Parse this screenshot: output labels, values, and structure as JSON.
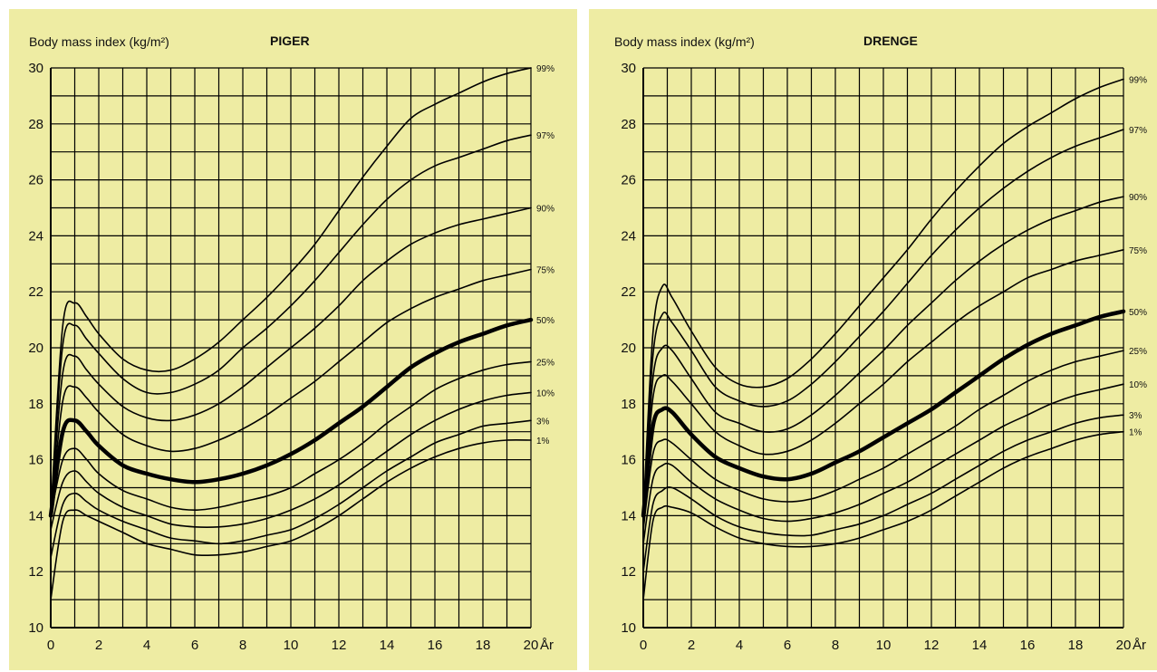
{
  "chart_data": [
    {
      "type": "line",
      "title": "PIGER",
      "ylabel": "Body mass index (kg/m²)",
      "xlabel": "År",
      "xlim": [
        0,
        20
      ],
      "ylim": [
        10,
        30
      ],
      "xticks": [
        "0",
        "2",
        "4",
        "6",
        "8",
        "10",
        "12",
        "14",
        "16",
        "18",
        "20"
      ],
      "yticks": [
        "10",
        "12",
        "14",
        "16",
        "18",
        "20",
        "22",
        "24",
        "26",
        "28",
        "30"
      ],
      "grid": true,
      "x": [
        0,
        0.5,
        1,
        1.5,
        2,
        3,
        4,
        5,
        6,
        7,
        8,
        9,
        10,
        11,
        12,
        13,
        14,
        15,
        16,
        17,
        18,
        19,
        20
      ],
      "series": [
        {
          "name": "99%",
          "bold": false,
          "values": [
            14.0,
            20.8,
            21.6,
            21.1,
            20.5,
            19.6,
            19.2,
            19.2,
            19.6,
            20.2,
            21.0,
            21.8,
            22.7,
            23.7,
            24.9,
            26.1,
            27.2,
            28.2,
            28.7,
            29.1,
            29.5,
            29.8,
            30.0
          ]
        },
        {
          "name": "97%",
          "bold": false,
          "values": [
            14.0,
            20.1,
            20.8,
            20.3,
            19.8,
            18.9,
            18.4,
            18.4,
            18.7,
            19.2,
            20.0,
            20.7,
            21.5,
            22.4,
            23.4,
            24.4,
            25.3,
            26.0,
            26.5,
            26.8,
            27.1,
            27.4,
            27.6
          ]
        },
        {
          "name": "90%",
          "bold": false,
          "values": [
            14.0,
            19.1,
            19.7,
            19.2,
            18.7,
            17.9,
            17.5,
            17.4,
            17.6,
            18.0,
            18.6,
            19.3,
            20.0,
            20.7,
            21.5,
            22.4,
            23.1,
            23.7,
            24.1,
            24.4,
            24.6,
            24.8,
            25.0
          ]
        },
        {
          "name": "75%",
          "bold": false,
          "values": [
            14.0,
            18.1,
            18.6,
            18.2,
            17.7,
            16.9,
            16.5,
            16.3,
            16.4,
            16.7,
            17.1,
            17.6,
            18.2,
            18.8,
            19.5,
            20.2,
            20.9,
            21.4,
            21.8,
            22.1,
            22.4,
            22.6,
            22.8
          ]
        },
        {
          "name": "50%",
          "bold": true,
          "values": [
            14.0,
            17.0,
            17.4,
            17.0,
            16.5,
            15.8,
            15.5,
            15.3,
            15.2,
            15.3,
            15.5,
            15.8,
            16.2,
            16.7,
            17.3,
            17.9,
            18.6,
            19.3,
            19.8,
            20.2,
            20.5,
            20.8,
            21.0
          ]
        },
        {
          "name": "25%",
          "bold": false,
          "values": [
            14.0,
            16.0,
            16.4,
            16.0,
            15.5,
            14.9,
            14.6,
            14.3,
            14.2,
            14.3,
            14.5,
            14.7,
            15.0,
            15.5,
            16.0,
            16.6,
            17.3,
            17.9,
            18.5,
            18.9,
            19.2,
            19.4,
            19.5
          ]
        },
        {
          "name": "10%",
          "bold": false,
          "values": [
            13.5,
            15.2,
            15.6,
            15.2,
            14.8,
            14.3,
            14.0,
            13.7,
            13.6,
            13.6,
            13.7,
            13.9,
            14.2,
            14.6,
            15.1,
            15.7,
            16.3,
            16.9,
            17.4,
            17.8,
            18.1,
            18.3,
            18.4
          ]
        },
        {
          "name": "3%",
          "bold": false,
          "values": [
            12.5,
            14.4,
            14.8,
            14.5,
            14.2,
            13.8,
            13.5,
            13.2,
            13.1,
            13.0,
            13.1,
            13.3,
            13.5,
            13.9,
            14.4,
            15.0,
            15.6,
            16.1,
            16.6,
            16.9,
            17.2,
            17.3,
            17.4
          ]
        },
        {
          "name": "1%",
          "bold": false,
          "values": [
            11.0,
            13.8,
            14.2,
            14.0,
            13.8,
            13.4,
            13.0,
            12.8,
            12.6,
            12.6,
            12.7,
            12.9,
            13.1,
            13.5,
            14.0,
            14.6,
            15.2,
            15.7,
            16.1,
            16.4,
            16.6,
            16.7,
            16.7
          ]
        }
      ]
    },
    {
      "type": "line",
      "title": "DRENGE",
      "ylabel": "Body mass index (kg/m²)",
      "xlabel": "År",
      "xlim": [
        0,
        20
      ],
      "ylim": [
        10,
        30
      ],
      "xticks": [
        "0",
        "2",
        "4",
        "6",
        "8",
        "10",
        "12",
        "14",
        "16",
        "18",
        "20"
      ],
      "yticks": [
        "10",
        "12",
        "14",
        "16",
        "18",
        "20",
        "22",
        "24",
        "26",
        "28",
        "30"
      ],
      "grid": true,
      "x": [
        0,
        0.4,
        0.8,
        1.2,
        2,
        3,
        4,
        5,
        6,
        7,
        8,
        9,
        10,
        11,
        12,
        13,
        14,
        15,
        16,
        17,
        18,
        19,
        20
      ],
      "series": [
        {
          "name": "99%",
          "bold": false,
          "values": [
            14.0,
            20.5,
            22.2,
            21.8,
            20.6,
            19.3,
            18.7,
            18.6,
            18.9,
            19.6,
            20.5,
            21.5,
            22.5,
            23.5,
            24.6,
            25.6,
            26.5,
            27.3,
            27.9,
            28.4,
            28.9,
            29.3,
            29.6
          ]
        },
        {
          "name": "97%",
          "bold": false,
          "values": [
            14.0,
            19.7,
            21.2,
            20.9,
            19.9,
            18.6,
            18.1,
            17.9,
            18.1,
            18.7,
            19.5,
            20.4,
            21.3,
            22.3,
            23.3,
            24.2,
            25.0,
            25.7,
            26.3,
            26.8,
            27.2,
            27.5,
            27.8
          ]
        },
        {
          "name": "90%",
          "bold": false,
          "values": [
            14.0,
            18.9,
            20.0,
            19.9,
            18.9,
            17.7,
            17.3,
            17.0,
            17.1,
            17.6,
            18.3,
            19.1,
            19.9,
            20.8,
            21.6,
            22.4,
            23.1,
            23.7,
            24.2,
            24.6,
            24.9,
            25.2,
            25.4
          ]
        },
        {
          "name": "75%",
          "bold": false,
          "values": [
            14.0,
            18.2,
            19.0,
            18.8,
            18.0,
            17.0,
            16.5,
            16.2,
            16.3,
            16.7,
            17.3,
            18.0,
            18.7,
            19.5,
            20.2,
            20.9,
            21.5,
            22.0,
            22.5,
            22.8,
            23.1,
            23.3,
            23.5
          ]
        },
        {
          "name": "50%",
          "bold": true,
          "values": [
            14.0,
            17.2,
            17.8,
            17.7,
            16.9,
            16.1,
            15.7,
            15.4,
            15.3,
            15.5,
            15.9,
            16.3,
            16.8,
            17.3,
            17.8,
            18.4,
            19.0,
            19.6,
            20.1,
            20.5,
            20.8,
            21.1,
            21.3
          ]
        },
        {
          "name": "25%",
          "bold": false,
          "values": [
            13.5,
            16.2,
            16.7,
            16.6,
            16.0,
            15.3,
            14.9,
            14.6,
            14.5,
            14.6,
            14.9,
            15.3,
            15.7,
            16.2,
            16.7,
            17.2,
            17.8,
            18.3,
            18.8,
            19.2,
            19.5,
            19.7,
            19.9
          ]
        },
        {
          "name": "10%",
          "bold": false,
          "values": [
            13.0,
            15.3,
            15.8,
            15.8,
            15.2,
            14.6,
            14.2,
            13.9,
            13.8,
            13.9,
            14.1,
            14.4,
            14.8,
            15.2,
            15.7,
            16.2,
            16.7,
            17.2,
            17.6,
            18.0,
            18.3,
            18.5,
            18.7
          ]
        },
        {
          "name": "3%",
          "bold": false,
          "values": [
            12.0,
            14.4,
            14.9,
            15.0,
            14.6,
            14.0,
            13.6,
            13.4,
            13.3,
            13.3,
            13.5,
            13.7,
            14.0,
            14.4,
            14.8,
            15.3,
            15.8,
            16.3,
            16.7,
            17.0,
            17.3,
            17.5,
            17.6
          ]
        },
        {
          "name": "1%",
          "bold": false,
          "values": [
            11.0,
            13.8,
            14.3,
            14.3,
            14.1,
            13.6,
            13.2,
            13.0,
            12.9,
            12.9,
            13.0,
            13.2,
            13.5,
            13.8,
            14.2,
            14.7,
            15.2,
            15.7,
            16.1,
            16.4,
            16.7,
            16.9,
            17.0
          ]
        }
      ]
    }
  ]
}
